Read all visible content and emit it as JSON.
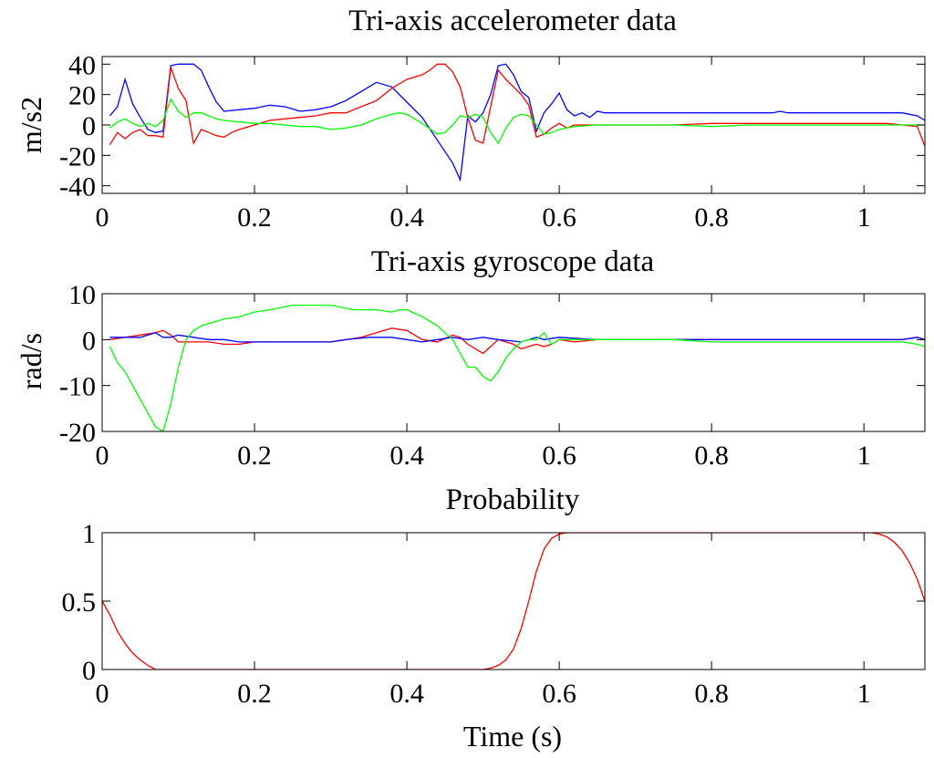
{
  "chart_data": [
    {
      "type": "line",
      "title": "Tri-axis accelerometer data",
      "xlabel": "",
      "ylabel": "m/s2",
      "xlim": [
        0,
        1.08
      ],
      "ylim": [
        -45,
        45
      ],
      "xticks": [
        0,
        0.2,
        0.4,
        0.6,
        0.8,
        1
      ],
      "xtick_labels": [
        "0",
        "0.2",
        "0.4",
        "0.6",
        "0.8",
        "1"
      ],
      "yticks": [
        40,
        20,
        0,
        -20,
        -40
      ],
      "ytick_labels": [
        "40",
        "20",
        "0",
        "-20",
        "-40"
      ],
      "grid": false,
      "series": [
        {
          "color": "#0000ff",
          "x": [
            0.01,
            0.02,
            0.03,
            0.04,
            0.05,
            0.06,
            0.07,
            0.08,
            0.09,
            0.1,
            0.11,
            0.12,
            0.13,
            0.14,
            0.15,
            0.16,
            0.18,
            0.2,
            0.22,
            0.24,
            0.26,
            0.28,
            0.3,
            0.32,
            0.34,
            0.36,
            0.38,
            0.4,
            0.42,
            0.44,
            0.46,
            0.47,
            0.48,
            0.49,
            0.5,
            0.51,
            0.52,
            0.53,
            0.54,
            0.55,
            0.56,
            0.57,
            0.58,
            0.59,
            0.6,
            0.61,
            0.62,
            0.63,
            0.64,
            0.65,
            0.66,
            0.68,
            0.7,
            0.75,
            0.8,
            0.85,
            0.88,
            0.89,
            0.9,
            0.95,
            1.0,
            1.05,
            1.07,
            1.08
          ],
          "values": [
            6,
            12,
            30,
            14,
            5,
            -3,
            -5,
            -4,
            39,
            40,
            40,
            40,
            36,
            25,
            15,
            9,
            10,
            11,
            13,
            12,
            9,
            10,
            12,
            16,
            22,
            28,
            25,
            15,
            5,
            -10,
            -25,
            -36,
            6,
            2,
            8,
            20,
            39,
            40,
            33,
            22,
            18,
            -4,
            8,
            14,
            21,
            10,
            6,
            8,
            5,
            9,
            8,
            8,
            8,
            8,
            8,
            8,
            8,
            9,
            8,
            8,
            8,
            8,
            6,
            3
          ]
        },
        {
          "color": "#ff0000",
          "x": [
            0.01,
            0.02,
            0.03,
            0.04,
            0.05,
            0.06,
            0.07,
            0.08,
            0.09,
            0.1,
            0.11,
            0.12,
            0.13,
            0.14,
            0.15,
            0.16,
            0.17,
            0.18,
            0.2,
            0.22,
            0.24,
            0.26,
            0.28,
            0.3,
            0.32,
            0.34,
            0.36,
            0.38,
            0.4,
            0.42,
            0.43,
            0.44,
            0.45,
            0.46,
            0.47,
            0.48,
            0.49,
            0.5,
            0.51,
            0.52,
            0.53,
            0.54,
            0.55,
            0.56,
            0.57,
            0.58,
            0.59,
            0.6,
            0.61,
            0.62,
            0.63,
            0.65,
            0.7,
            0.75,
            0.8,
            0.85,
            0.9,
            0.95,
            1.0,
            1.03,
            1.05,
            1.07,
            1.08
          ],
          "values": [
            -13,
            -5,
            -9,
            -5,
            -3,
            -7,
            -7,
            -8,
            38,
            24,
            16,
            -12,
            -3,
            -5,
            -7,
            -8,
            -5,
            -3,
            0,
            3,
            4,
            5,
            6,
            8,
            8,
            12,
            16,
            24,
            30,
            33,
            36,
            40,
            40,
            35,
            25,
            5,
            -10,
            -12,
            12,
            36,
            30,
            25,
            20,
            13,
            -8,
            -6,
            -2,
            1,
            -2,
            0,
            0,
            0,
            0,
            0,
            1,
            1,
            1,
            1,
            1,
            1,
            0,
            -1,
            -14
          ]
        },
        {
          "color": "#00ff00",
          "x": [
            0.01,
            0.02,
            0.03,
            0.04,
            0.05,
            0.06,
            0.07,
            0.08,
            0.09,
            0.1,
            0.11,
            0.12,
            0.13,
            0.14,
            0.15,
            0.16,
            0.18,
            0.2,
            0.22,
            0.24,
            0.26,
            0.28,
            0.3,
            0.32,
            0.34,
            0.36,
            0.38,
            0.39,
            0.4,
            0.42,
            0.44,
            0.45,
            0.46,
            0.47,
            0.48,
            0.49,
            0.5,
            0.51,
            0.52,
            0.53,
            0.54,
            0.55,
            0.56,
            0.57,
            0.58,
            0.59,
            0.6,
            0.61,
            0.62,
            0.65,
            0.7,
            0.75,
            0.8,
            0.85,
            0.9,
            0.95,
            1.0,
            1.05,
            1.07,
            1.08
          ],
          "values": [
            -2,
            2,
            4,
            1,
            -1,
            1,
            -1,
            3,
            17,
            9,
            5,
            8,
            8,
            6,
            4,
            3,
            2,
            1,
            1,
            0,
            -1,
            -1,
            -3,
            -2,
            0,
            4,
            7,
            8,
            7,
            1,
            -6,
            -5,
            0,
            6,
            5,
            7,
            5,
            -5,
            -12,
            -2,
            5,
            7,
            6,
            0,
            -6,
            -5,
            -3,
            -2,
            -1,
            0,
            0,
            0,
            -1,
            0,
            0,
            0,
            0,
            0,
            0,
            0
          ]
        }
      ]
    },
    {
      "type": "line",
      "title": "Tri-axis gyroscope data",
      "xlabel": "",
      "ylabel": "rad/s",
      "xlim": [
        0,
        1.08
      ],
      "ylim": [
        -20,
        10
      ],
      "xticks": [
        0,
        0.2,
        0.4,
        0.6,
        0.8,
        1
      ],
      "xtick_labels": [
        "0",
        "0.2",
        "0.4",
        "0.6",
        "0.8",
        "1"
      ],
      "yticks": [
        10,
        0,
        -10,
        -20
      ],
      "ytick_labels": [
        "10",
        "0",
        "-10",
        "-20"
      ],
      "grid": false,
      "series": [
        {
          "color": "#ff0000",
          "x": [
            0.01,
            0.03,
            0.05,
            0.07,
            0.08,
            0.09,
            0.1,
            0.12,
            0.14,
            0.16,
            0.18,
            0.2,
            0.22,
            0.25,
            0.28,
            0.3,
            0.32,
            0.34,
            0.36,
            0.38,
            0.4,
            0.42,
            0.44,
            0.46,
            0.47,
            0.48,
            0.49,
            0.5,
            0.51,
            0.52,
            0.53,
            0.54,
            0.55,
            0.56,
            0.57,
            0.58,
            0.59,
            0.6,
            0.62,
            0.65,
            0.7,
            0.8,
            0.9,
            1.0,
            1.05,
            1.07,
            1.08
          ],
          "values": [
            0,
            0.5,
            1,
            1.5,
            2,
            1,
            -0.5,
            -0.5,
            -0.5,
            -1,
            -1,
            -0.5,
            -0.5,
            -0.5,
            -0.5,
            -0.5,
            0,
            0.5,
            1.5,
            2.5,
            2,
            0,
            -0.5,
            1,
            0.5,
            -1,
            -2,
            -3,
            -1.5,
            0,
            -0.5,
            -1,
            -2,
            -1.5,
            -1,
            -1.5,
            -1,
            0,
            -0.5,
            0,
            0,
            0,
            0,
            0,
            0,
            0.5,
            0
          ]
        },
        {
          "color": "#0000ff",
          "x": [
            0.01,
            0.03,
            0.05,
            0.07,
            0.08,
            0.09,
            0.1,
            0.12,
            0.14,
            0.16,
            0.18,
            0.2,
            0.25,
            0.3,
            0.32,
            0.35,
            0.38,
            0.4,
            0.42,
            0.44,
            0.46,
            0.48,
            0.5,
            0.52,
            0.55,
            0.57,
            0.58,
            0.6,
            0.65,
            0.7,
            0.8,
            0.9,
            1.0,
            1.05,
            1.07,
            1.08
          ],
          "values": [
            0.5,
            0.5,
            0.5,
            1.5,
            0.5,
            0.5,
            1,
            0.5,
            0,
            0,
            -0.5,
            -0.5,
            -0.5,
            -0.5,
            0,
            0.5,
            0.5,
            0,
            -0.5,
            0,
            0.5,
            0,
            0.5,
            0,
            -0.5,
            0.5,
            0,
            0.5,
            0,
            0,
            0,
            0,
            0,
            0,
            0.5,
            0
          ]
        },
        {
          "color": "#00ff00",
          "x": [
            0.01,
            0.02,
            0.03,
            0.04,
            0.05,
            0.06,
            0.07,
            0.08,
            0.09,
            0.1,
            0.11,
            0.12,
            0.13,
            0.14,
            0.16,
            0.18,
            0.2,
            0.22,
            0.25,
            0.3,
            0.33,
            0.36,
            0.38,
            0.39,
            0.4,
            0.42,
            0.44,
            0.45,
            0.46,
            0.47,
            0.48,
            0.49,
            0.5,
            0.51,
            0.52,
            0.53,
            0.54,
            0.55,
            0.56,
            0.57,
            0.58,
            0.59,
            0.6,
            0.62,
            0.65,
            0.7,
            0.75,
            0.8,
            0.9,
            1.0,
            1.05,
            1.07,
            1.08
          ],
          "values": [
            -1.5,
            -5,
            -7,
            -10,
            -13,
            -16,
            -19,
            -20,
            -14,
            -6,
            0,
            2,
            3,
            3.5,
            4.5,
            5,
            6,
            6.5,
            7.5,
            7.5,
            6.5,
            6.5,
            6,
            6.5,
            6.5,
            5,
            3,
            1.5,
            0,
            -3,
            -6,
            -6,
            -8,
            -9,
            -7,
            -4,
            -2,
            -0.5,
            0,
            0,
            1.5,
            -1,
            0,
            0,
            0,
            0,
            0,
            -0.5,
            -0.5,
            -0.5,
            -0.5,
            -1,
            -1.5
          ]
        }
      ]
    },
    {
      "type": "line",
      "title": "Probability",
      "xlabel": "Time (s)",
      "ylabel": "",
      "xlim": [
        0,
        1.08
      ],
      "ylim": [
        0,
        1
      ],
      "xticks": [
        0,
        0.2,
        0.4,
        0.6,
        0.8,
        1
      ],
      "xtick_labels": [
        "0",
        "0.2",
        "0.4",
        "0.6",
        "0.8",
        "1"
      ],
      "yticks": [
        1,
        0.5,
        0
      ],
      "ytick_labels": [
        "1",
        "0.5",
        "0"
      ],
      "grid": false,
      "series": [
        {
          "color": "#ff0000",
          "x": [
            0.0,
            0.01,
            0.02,
            0.03,
            0.04,
            0.05,
            0.06,
            0.07,
            0.1,
            0.2,
            0.3,
            0.4,
            0.5,
            0.51,
            0.52,
            0.53,
            0.54,
            0.55,
            0.56,
            0.57,
            0.58,
            0.59,
            0.6,
            0.61,
            0.62,
            0.7,
            0.8,
            0.9,
            1.0,
            1.01,
            1.02,
            1.03,
            1.04,
            1.05,
            1.06,
            1.07,
            1.08
          ],
          "values": [
            0.5,
            0.4,
            0.28,
            0.19,
            0.12,
            0.07,
            0.03,
            0.0,
            0.0,
            0.0,
            0.0,
            0.0,
            0.0,
            0.01,
            0.03,
            0.07,
            0.15,
            0.3,
            0.5,
            0.72,
            0.88,
            0.96,
            0.99,
            1.0,
            1.0,
            1.0,
            1.0,
            1.0,
            1.0,
            1.0,
            0.99,
            0.97,
            0.93,
            0.87,
            0.78,
            0.66,
            0.5
          ]
        }
      ]
    }
  ]
}
